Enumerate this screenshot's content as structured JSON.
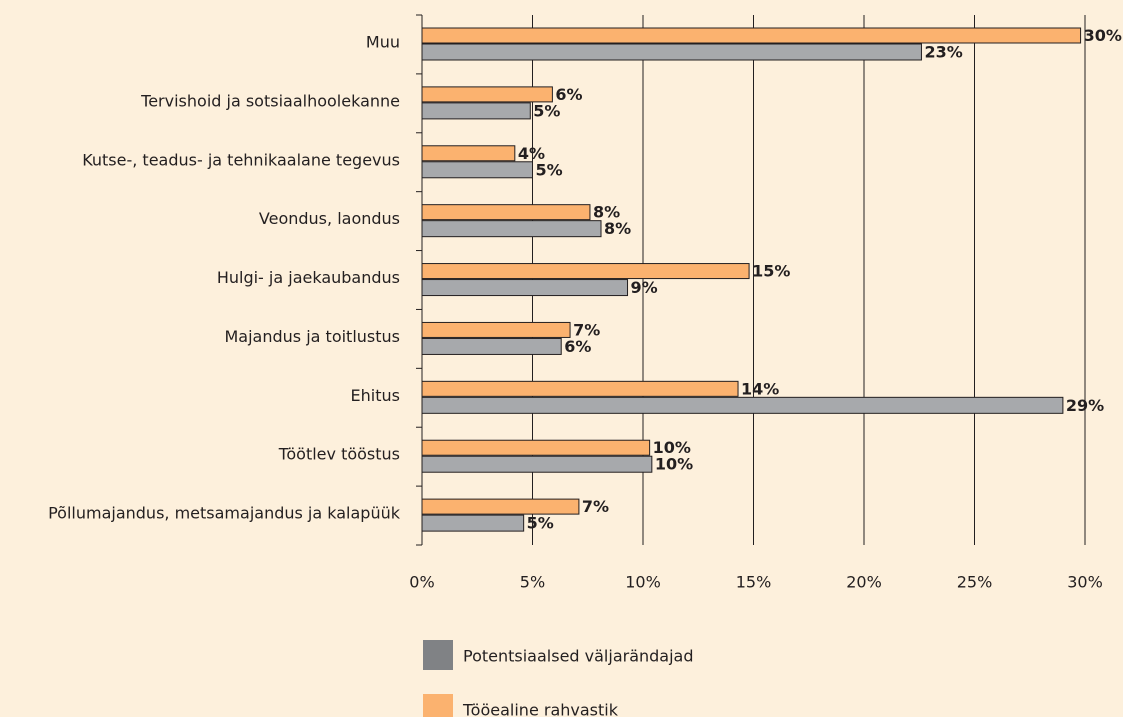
{
  "chart_data": {
    "type": "bar",
    "orientation": "horizontal",
    "categories": [
      "Muu",
      "Tervishoid ja sotsiaalhoolekanne",
      "Kutse-, teadus- ja tehnikaalane tegevus",
      "Veondus, laondus",
      "Hulgi- ja jaekaubandus",
      "Majandus ja toitlustus",
      "Ehitus",
      "Töötlev tööstus",
      "Põllumajandus, metsamajandus ja kalapüük"
    ],
    "series": [
      {
        "name": "Potentsiaalsed väljarändajad",
        "color": "#a7a9ac",
        "values": [
          22.6,
          4.9,
          5.0,
          8.1,
          9.3,
          6.3,
          29.0,
          10.4,
          4.6
        ],
        "value_labels": [
          "23%",
          "5%",
          "5%",
          "8%",
          "9%",
          "6%",
          "29%",
          "10%",
          "5%"
        ]
      },
      {
        "name": "Tööealine rahvastik",
        "color": "#fbb26f",
        "values": [
          29.8,
          5.9,
          4.2,
          7.6,
          14.8,
          6.7,
          14.3,
          10.3,
          7.1
        ],
        "value_labels": [
          "30%",
          "6%",
          "4%",
          "8%",
          "15%",
          "7%",
          "14%",
          "10%",
          "7%"
        ]
      }
    ],
    "xlim": [
      0,
      30
    ],
    "xticks": [
      {
        "value": 0,
        "label": "0%"
      },
      {
        "value": 5,
        "label": "5%"
      },
      {
        "value": 10,
        "label": "10%"
      },
      {
        "value": 15,
        "label": "15%"
      },
      {
        "value": 20,
        "label": "20%"
      },
      {
        "value": 25,
        "label": "25%"
      },
      {
        "value": 30,
        "label": "30%"
      }
    ],
    "grid": true,
    "legend": "bottom"
  }
}
